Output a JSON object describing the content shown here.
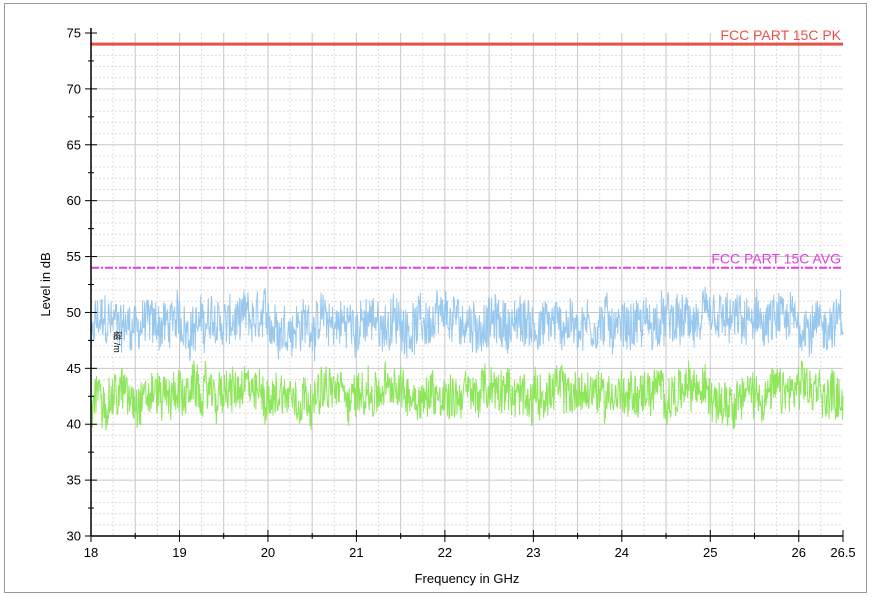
{
  "chart_data": {
    "type": "line",
    "title": "",
    "xlabel": "Frequency in GHz",
    "ylabel": "Level in dB",
    "xlim": [
      18,
      26.5
    ],
    "ylim": [
      30,
      75
    ],
    "x_ticks": [
      "18",
      "19",
      "20",
      "21",
      "22",
      "23",
      "24",
      "25",
      "26",
      "26.5"
    ],
    "y_ticks": [
      "30",
      "35",
      "40",
      "45",
      "50",
      "55",
      "60",
      "65",
      "70",
      "75"
    ],
    "grid": true,
    "limit_lines": [
      {
        "label": "FCC PART 15C   PK",
        "y": 74,
        "color": "#e8524a"
      },
      {
        "label": "FCC PART 15C  AVG",
        "y": 54,
        "color": "#e040e0"
      }
    ],
    "series": [
      {
        "name": "",
        "color": "#99c8ee",
        "mean": 49,
        "amplitude": 3.3,
        "min": 44.5,
        "max": 53.5
      },
      {
        "name": "",
        "color": "#8ee65a",
        "mean": 42.8,
        "amplitude": 3.0,
        "min": 38.5,
        "max": 47
      }
    ],
    "annotation": "磁 /m"
  }
}
